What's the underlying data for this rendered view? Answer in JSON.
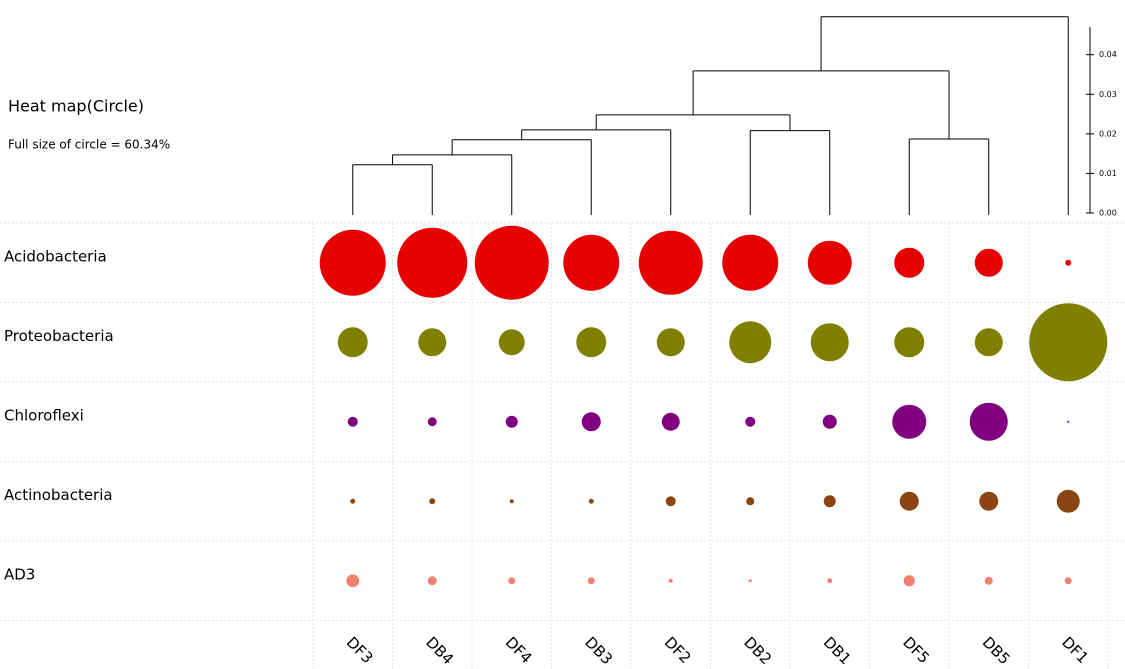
{
  "chart_data": {
    "type": "circle_heatmap",
    "title": "Heat map(Circle)",
    "subtitle": "Full size of circle = 60.34%",
    "full_size": 60.34,
    "categories": [
      "DF3",
      "DB4",
      "DF4",
      "DB3",
      "DF2",
      "DB2",
      "DB1",
      "DF5",
      "DB5",
      "DF1"
    ],
    "series": [
      {
        "name": "Acidobacteria",
        "color": "#e60000",
        "values": [
          42.1,
          47.4,
          52.9,
          30.3,
          39.6,
          30.3,
          18.7,
          8.7,
          7.6,
          0.35
        ]
      },
      {
        "name": "Proteobacteria",
        "color": "#808000",
        "values": [
          8.7,
          7.6,
          6.5,
          8.7,
          7.6,
          17.1,
          14.0,
          8.7,
          7.6,
          58.8
        ]
      },
      {
        "name": "Chloroflexi",
        "color": "#800080",
        "values": [
          0.97,
          0.78,
          1.4,
          3.5,
          3.1,
          0.97,
          1.9,
          11.2,
          14.0,
          0.04
        ]
      },
      {
        "name": "Actinobacteria",
        "color": "#8b4513",
        "values": [
          0.24,
          0.35,
          0.15,
          0.24,
          0.97,
          0.62,
          1.4,
          3.5,
          3.5,
          5.1
        ]
      },
      {
        "name": "AD3",
        "color": "#f08070",
        "values": [
          1.6,
          0.78,
          0.47,
          0.47,
          0.15,
          0.09,
          0.24,
          1.2,
          0.62,
          0.47
        ]
      }
    ],
    "dendrogram": {
      "height": 0.0496,
      "children": [
        {
          "height": 0.0359,
          "children": [
            {
              "height": 0.0248,
              "children": [
                {
                  "height": 0.021,
                  "children": [
                    {
                      "height": 0.0185,
                      "children": [
                        {
                          "height": 0.0147,
                          "children": [
                            {
                              "height": 0.0122,
                              "children": [
                                0,
                                1
                              ]
                            },
                            2
                          ]
                        },
                        3
                      ]
                    },
                    4
                  ]
                },
                {
                  "height": 0.0208,
                  "children": [
                    5,
                    6
                  ]
                }
              ]
            },
            {
              "height": 0.0187,
              "children": [
                7,
                8
              ]
            }
          ]
        },
        9
      ]
    },
    "ylim": [
      0,
      0.047
    ],
    "yticks": [
      {
        "value": 0,
        "label": "0.00"
      },
      {
        "value": 0.01,
        "label": "0.01"
      },
      {
        "value": 0.02,
        "label": "0.02"
      },
      {
        "value": 0.03,
        "label": "0.03"
      },
      {
        "value": 0.04,
        "label": "0.04"
      }
    ]
  }
}
